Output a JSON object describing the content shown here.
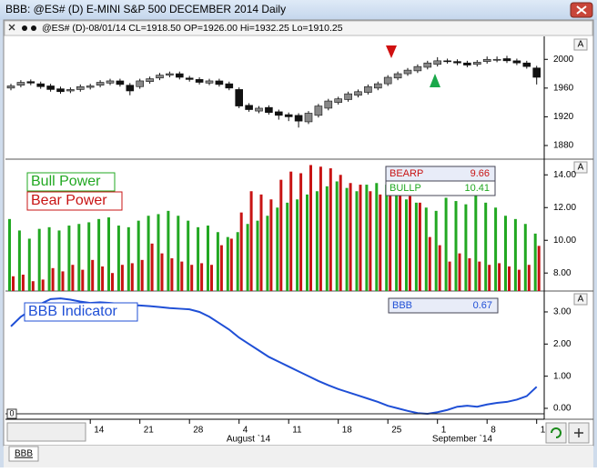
{
  "window_title": "BBB: @ES# (D) E-MINI S&P 500 DECEMBER 2014 Daily",
  "info_bar": "@ES# (D)-08/01/14 CL=1918.50 OP=1926.00 Hi=1932.25 Lo=1910.25",
  "panel_button": "A",
  "tab": "BBB",
  "months": [
    "August `14",
    "September `14"
  ],
  "chart_data": [
    {
      "type": "candlestick",
      "categories": [
        null,
        null,
        null,
        null,
        null,
        null,
        null,
        null,
        "14",
        null,
        null,
        null,
        null,
        "21",
        null,
        null,
        null,
        null,
        "28",
        null,
        null,
        null,
        null,
        "4",
        null,
        null,
        null,
        null,
        "11",
        null,
        null,
        null,
        null,
        "18",
        null,
        null,
        null,
        null,
        "25",
        null,
        null,
        null,
        null,
        "1",
        null,
        null,
        null,
        null,
        "8",
        null,
        null,
        null,
        null,
        "1"
      ],
      "open": [
        1960,
        1964,
        1969,
        1966,
        1963,
        1959,
        1956,
        1958,
        1961,
        1964,
        1967,
        1970,
        1964,
        1962,
        1969,
        1974,
        1978,
        1980,
        1974,
        1972,
        1967,
        1970,
        1966,
        1958,
        1936,
        1928,
        1933,
        1927,
        1923,
        1922,
        1913,
        1922,
        1932,
        1940,
        1944,
        1950,
        1954,
        1960,
        1966,
        1974,
        1980,
        1984,
        1989,
        1993,
        1998,
        1997,
        1995,
        1993,
        1997,
        1999,
        2001,
        1998,
        1995,
        1988
      ],
      "high": [
        1966,
        1971,
        1972,
        1969,
        1966,
        1962,
        1961,
        1965,
        1966,
        1971,
        1973,
        1973,
        1967,
        1973,
        1976,
        1981,
        1983,
        1983,
        1977,
        1975,
        1973,
        1973,
        1969,
        1961,
        1939,
        1935,
        1936,
        1930,
        1926,
        1925,
        1928,
        1938,
        1945,
        1948,
        1955,
        1958,
        1965,
        1969,
        1978,
        1983,
        1988,
        1993,
        1998,
        2003,
        2001,
        2000,
        1998,
        1999,
        2004,
        2004,
        2005,
        2001,
        1998,
        1991
      ],
      "low": [
        1957,
        1961,
        1964,
        1959,
        1955,
        1952,
        1953,
        1955,
        1958,
        1961,
        1964,
        1962,
        1950,
        1959,
        1966,
        1971,
        1975,
        1972,
        1969,
        1965,
        1964,
        1962,
        1957,
        1932,
        1927,
        1925,
        1923,
        1916,
        1914,
        1905,
        1910,
        1919,
        1929,
        1937,
        1941,
        1947,
        1951,
        1957,
        1963,
        1971,
        1977,
        1981,
        1986,
        1990,
        1994,
        1992,
        1989,
        1990,
        1994,
        1996,
        1995,
        1992,
        1987,
        1965
      ],
      "close": [
        1963,
        1968,
        1967,
        1962,
        1958,
        1955,
        1958,
        1962,
        1963,
        1968,
        1970,
        1965,
        1956,
        1970,
        1973,
        1978,
        1980,
        1975,
        1972,
        1968,
        1970,
        1965,
        1960,
        1935,
        1930,
        1932,
        1926,
        1922,
        1920,
        1914,
        1925,
        1935,
        1942,
        1945,
        1952,
        1955,
        1962,
        1966,
        1975,
        1980,
        1985,
        1990,
        1995,
        1998,
        1997,
        1995,
        1992,
        1996,
        2000,
        2000,
        1998,
        1995,
        1990,
        1975
      ],
      "ylim": [
        1861,
        2032
      ],
      "yticks": [
        1880,
        1920,
        1960,
        2000
      ]
    },
    {
      "type": "bar",
      "series": [
        {
          "name": "Bull Power",
          "color": "#22a822",
          "values": [
            11.3,
            10.6,
            10.1,
            10.7,
            10.8,
            10.6,
            10.9,
            11.0,
            11.1,
            11.3,
            11.4,
            10.9,
            10.8,
            11.2,
            11.5,
            11.6,
            11.8,
            11.5,
            11.2,
            10.8,
            10.9,
            10.5,
            10.2,
            10.5,
            11.0,
            11.2,
            11.5,
            12.0,
            12.3,
            12.5,
            12.8,
            13.0,
            13.3,
            13.6,
            13.2,
            13.0,
            13.4,
            13.5,
            13.4,
            13.1,
            12.5,
            12.3,
            12.0,
            11.8,
            12.6,
            12.4,
            12.2,
            12.8,
            12.3,
            12.0,
            11.5,
            11.3,
            11.0,
            10.41
          ]
        },
        {
          "name": "Bear Power",
          "color": "#c81414",
          "values": [
            7.8,
            7.9,
            7.5,
            7.6,
            8.3,
            8.1,
            8.5,
            8.2,
            8.8,
            8.4,
            8.0,
            8.5,
            8.6,
            8.8,
            9.8,
            9.2,
            8.9,
            8.7,
            8.5,
            8.6,
            8.5,
            9.7,
            10.1,
            11.7,
            13.0,
            12.8,
            12.5,
            13.7,
            14.2,
            14.1,
            14.6,
            14.5,
            14.4,
            14.0,
            13.5,
            13.4,
            13.0,
            12.8,
            13.2,
            12.9,
            12.7,
            12.3,
            10.2,
            9.7,
            8.7,
            9.2,
            8.9,
            8.7,
            8.5,
            8.6,
            8.4,
            8.2,
            8.5,
            9.66
          ]
        }
      ],
      "readout": [
        {
          "label": "BEARP",
          "value": 9.66,
          "color": "#c81414"
        },
        {
          "label": "BULLP",
          "value": 10.41,
          "color": "#22a822"
        }
      ],
      "ylim": [
        6.9,
        14.96
      ],
      "yticks": [
        {
          "value": 8,
          "label": "8.00"
        },
        {
          "value": 10,
          "label": "10.00"
        },
        {
          "value": 12,
          "label": "12.00"
        },
        {
          "value": 14,
          "label": "14.00"
        }
      ]
    },
    {
      "type": "line",
      "series": [
        {
          "name": "BBB Indicator",
          "color": "#1f4fd6",
          "values": [
            2.55,
            2.85,
            3.05,
            3.25,
            3.4,
            3.42,
            3.38,
            3.32,
            3.28,
            3.3,
            3.28,
            3.25,
            3.22,
            3.2,
            3.18,
            3.15,
            3.12,
            3.1,
            3.08,
            3.0,
            2.85,
            2.65,
            2.45,
            2.2,
            2.0,
            1.8,
            1.6,
            1.45,
            1.3,
            1.15,
            1.0,
            0.85,
            0.72,
            0.6,
            0.5,
            0.4,
            0.3,
            0.2,
            0.08,
            0.0,
            -0.08,
            -0.15,
            -0.17,
            -0.12,
            -0.05,
            0.05,
            0.08,
            0.05,
            0.12,
            0.17,
            0.2,
            0.27,
            0.38,
            0.67
          ]
        }
      ],
      "readout": [
        {
          "label": "BBB",
          "value": 0.67,
          "color": "#1f4fd6"
        }
      ],
      "baseline": 0,
      "ylim": [
        -0.34,
        3.65
      ],
      "yticks": [
        {
          "value": 0,
          "label": "0.00"
        },
        {
          "value": 1,
          "label": "1.00"
        },
        {
          "value": 2,
          "label": "2.00"
        },
        {
          "value": 3,
          "label": "3.00"
        }
      ]
    }
  ]
}
